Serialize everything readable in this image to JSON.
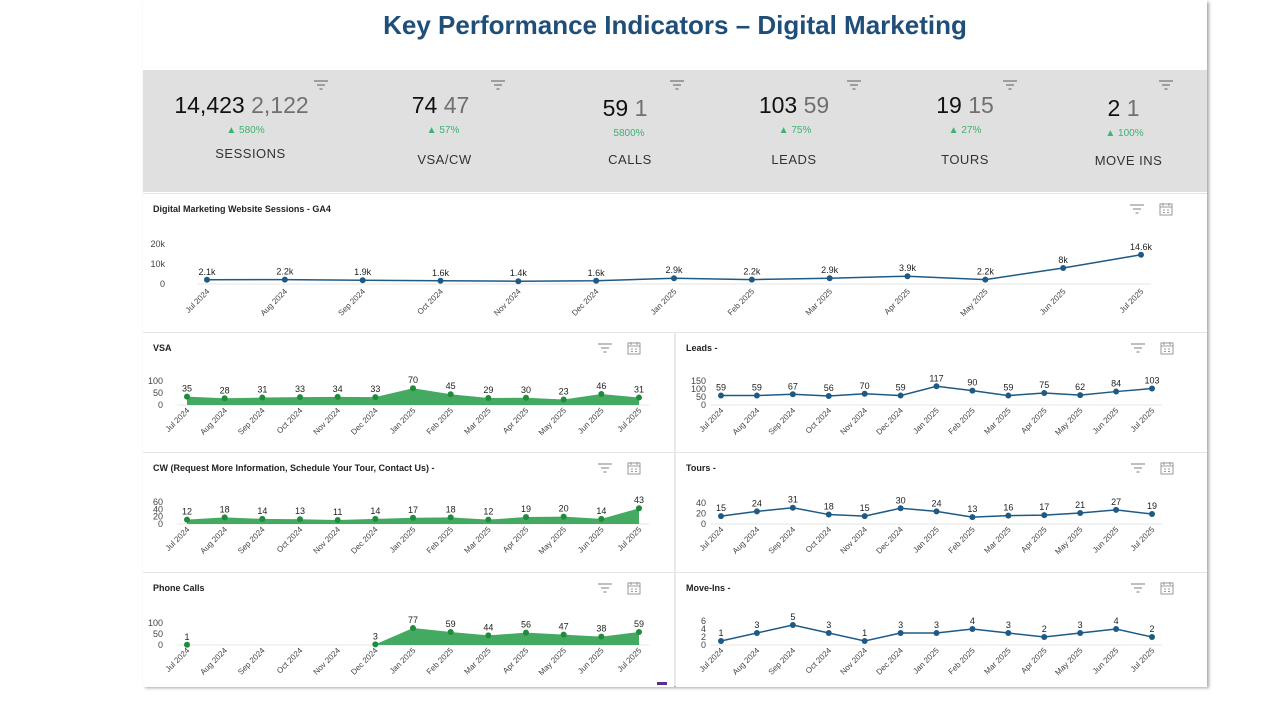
{
  "title": "Key Performance Indicators – Digital Marketing",
  "kpis": [
    {
      "current": "14,423",
      "previous": "2,122",
      "change": "▲ 580%",
      "label": "SESSIONS",
      "icon": "filter-icon"
    },
    {
      "current": "74",
      "previous": "47",
      "change": "▲ 57%",
      "label": "VSA/CW",
      "icon": "filter-icon"
    },
    {
      "current": "59",
      "previous": "1",
      "change": "5800%",
      "label": "CALLS",
      "icon": "filter-icon"
    },
    {
      "current": "103",
      "previous": "59",
      "change": "▲ 75%",
      "label": "LEADS",
      "icon": "filter-icon"
    },
    {
      "current": "19",
      "previous": "15",
      "change": "▲ 27%",
      "label": "TOURS",
      "icon": "filter-icon"
    },
    {
      "current": "2",
      "previous": "1",
      "change": "▲ 100%",
      "label": "MOVE INS",
      "icon": "filter-icon"
    }
  ],
  "colors": {
    "title": "#1f4e79",
    "line": "#1f5a85",
    "area": "#3aa55a",
    "point_green": "#1e8c3a",
    "positive": "#3cb371",
    "kpi_band": "#e0e0e0"
  },
  "chart_data": [
    {
      "id": "sessions",
      "type": "line",
      "title": "Digital Marketing Website Sessions - GA4",
      "categories": [
        "Jul 2024",
        "Aug 2024",
        "Sep 2024",
        "Oct 2024",
        "Nov 2024",
        "Dec 2024",
        "Jan 2025",
        "Feb 2025",
        "Mar 2025",
        "Apr 2025",
        "May 2025",
        "Jun 2025",
        "Jul 2025"
      ],
      "values": [
        2100,
        2200,
        1900,
        1600,
        1400,
        1600,
        2900,
        2200,
        2900,
        3900,
        2200,
        8000,
        14600
      ],
      "labels": [
        "2.1k",
        "2.2k",
        "1.9k",
        "1.6k",
        "1.4k",
        "1.6k",
        "2.9k",
        "2.2k",
        "2.9k",
        "3.9k",
        "2.2k",
        "8k",
        "14.6k"
      ],
      "yticks": [
        "0",
        "10k",
        "20k"
      ],
      "ylim": [
        0,
        20000
      ],
      "grid": false,
      "style": "line"
    },
    {
      "id": "vsa",
      "type": "area",
      "title": "VSA",
      "categories": [
        "Jul 2024",
        "Aug 2024",
        "Sep 2024",
        "Oct 2024",
        "Nov 2024",
        "Dec 2024",
        "Jan 2025",
        "Feb 2025",
        "Mar 2025",
        "Apr 2025",
        "May 2025",
        "Jun 2025",
        "Jul 2025"
      ],
      "values": [
        35,
        28,
        31,
        33,
        34,
        33,
        70,
        45,
        29,
        30,
        23,
        46,
        31
      ],
      "labels": [
        "35",
        "28",
        "31",
        "33",
        "34",
        "33",
        "70",
        "45",
        "29",
        "30",
        "23",
        "46",
        "31"
      ],
      "yticks": [
        "0",
        "50",
        "100"
      ],
      "ylim": [
        0,
        100
      ],
      "grid": false,
      "style": "area"
    },
    {
      "id": "leads",
      "type": "line",
      "title": "Leads -",
      "categories": [
        "Jul 2024",
        "Aug 2024",
        "Sep 2024",
        "Oct 2024",
        "Nov 2024",
        "Dec 2024",
        "Jan 2025",
        "Feb 2025",
        "Mar 2025",
        "Apr 2025",
        "May 2025",
        "Jun 2025",
        "Jul 2025"
      ],
      "values": [
        59,
        59,
        67,
        56,
        70,
        59,
        117,
        90,
        59,
        75,
        62,
        84,
        103
      ],
      "labels": [
        "59",
        "59",
        "67",
        "56",
        "70",
        "59",
        "117",
        "90",
        "59",
        "75",
        "62",
        "84",
        "103"
      ],
      "yticks": [
        "0",
        "50",
        "100",
        "150"
      ],
      "ylim": [
        0,
        150
      ],
      "grid": false,
      "style": "line"
    },
    {
      "id": "cw",
      "type": "area",
      "title": "CW (Request More Information, Schedule Your Tour, Contact Us) -",
      "categories": [
        "Jul 2024",
        "Aug 2024",
        "Sep 2024",
        "Oct 2024",
        "Nov 2024",
        "Dec 2024",
        "Jan 2025",
        "Feb 2025",
        "Mar 2025",
        "Apr 2025",
        "May 2025",
        "Jun 2025",
        "Jul 2025"
      ],
      "values": [
        12,
        18,
        14,
        13,
        11,
        14,
        17,
        18,
        12,
        19,
        20,
        14,
        43
      ],
      "labels": [
        "12",
        "18",
        "14",
        "13",
        "11",
        "14",
        "17",
        "18",
        "12",
        "19",
        "20",
        "14",
        "43"
      ],
      "yticks": [
        "0",
        "20",
        "40",
        "60"
      ],
      "ylim": [
        0,
        60
      ],
      "grid": false,
      "style": "area"
    },
    {
      "id": "tours",
      "type": "line",
      "title": "Tours -",
      "categories": [
        "Jul 2024",
        "Aug 2024",
        "Sep 2024",
        "Oct 2024",
        "Nov 2024",
        "Dec 2024",
        "Jan 2025",
        "Feb 2025",
        "Mar 2025",
        "Apr 2025",
        "May 2025",
        "Jun 2025",
        "Jul 2025"
      ],
      "values": [
        15,
        24,
        31,
        18,
        15,
        30,
        24,
        13,
        16,
        17,
        21,
        27,
        19
      ],
      "labels": [
        "15",
        "24",
        "31",
        "18",
        "15",
        "30",
        "24",
        "13",
        "16",
        "17",
        "21",
        "27",
        "19"
      ],
      "yticks": [
        "0",
        "20",
        "40"
      ],
      "ylim": [
        0,
        40
      ],
      "grid": false,
      "style": "line"
    },
    {
      "id": "calls",
      "type": "area",
      "title": "Phone Calls",
      "categories": [
        "Jul 2024",
        "Aug 2024",
        "Sep 2024",
        "Oct 2024",
        "Nov 2024",
        "Dec 2024",
        "Jan 2025",
        "Feb 2025",
        "Mar 2025",
        "Apr 2025",
        "May 2025",
        "Jun 2025",
        "Jul 2025"
      ],
      "values": [
        1,
        null,
        null,
        null,
        null,
        3,
        77,
        59,
        44,
        56,
        47,
        38,
        59
      ],
      "labels": [
        "1",
        "",
        "",
        "",
        "",
        "3",
        "77",
        "59",
        "44",
        "56",
        "47",
        "38",
        "59"
      ],
      "yticks": [
        "0",
        "50",
        "100"
      ],
      "ylim": [
        0,
        100
      ],
      "grid": false,
      "style": "area"
    },
    {
      "id": "moveins",
      "type": "line",
      "title": "Move-Ins -",
      "categories": [
        "Jul 2024",
        "Aug 2024",
        "Sep 2024",
        "Oct 2024",
        "Nov 2024",
        "Dec 2024",
        "Jan 2025",
        "Feb 2025",
        "Mar 2025",
        "Apr 2025",
        "May 2025",
        "Jun 2025",
        "Jul 2025"
      ],
      "values": [
        1,
        3,
        5,
        3,
        1,
        3,
        3,
        4,
        3,
        2,
        3,
        4,
        2
      ],
      "labels": [
        "1",
        "3",
        "5",
        "3",
        "1",
        "3",
        "3",
        "4",
        "3",
        "2",
        "3",
        "4",
        "2"
      ],
      "yticks": [
        "0",
        "2",
        "4",
        "6"
      ],
      "ylim": [
        0,
        6
      ],
      "grid": false,
      "style": "line"
    }
  ]
}
